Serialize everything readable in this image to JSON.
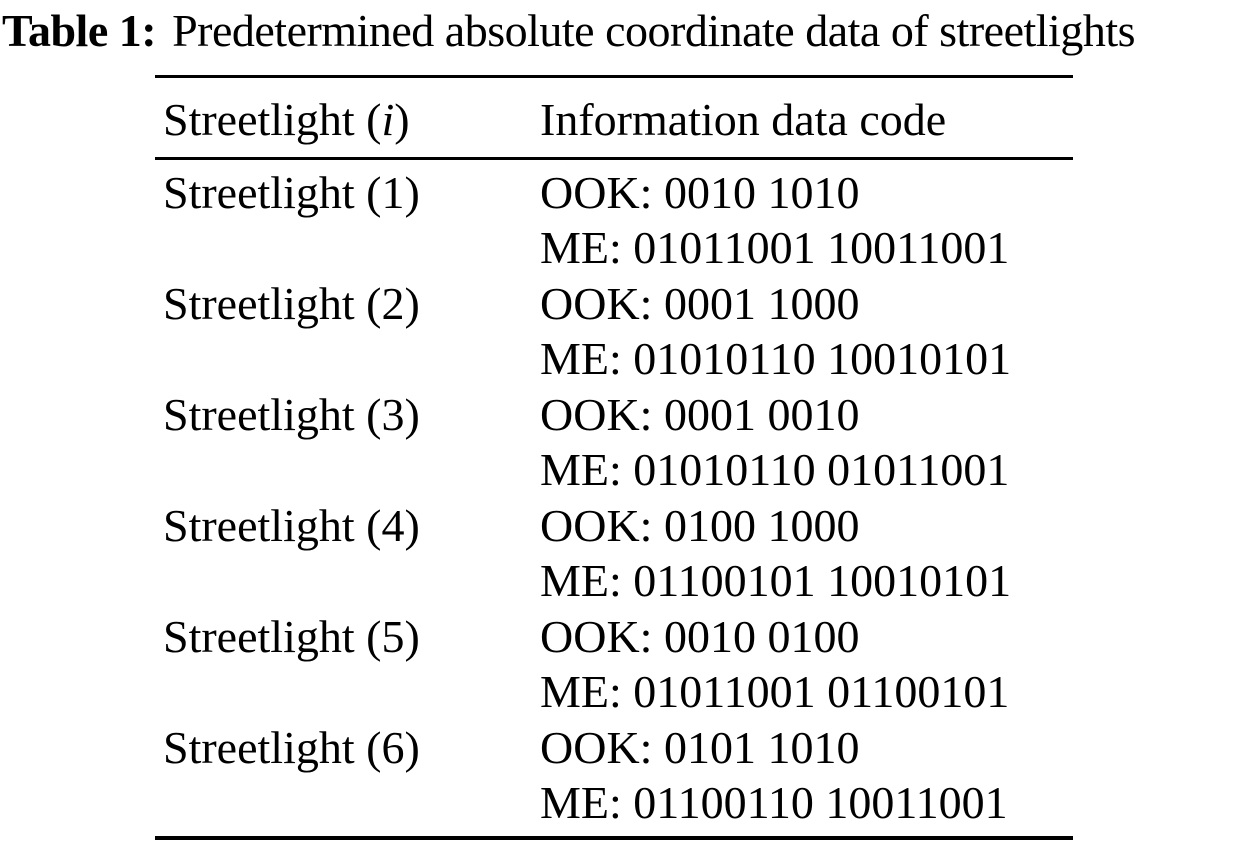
{
  "caption": {
    "label": "Table 1:",
    "text": "Predetermined absolute coordinate data of streetlights"
  },
  "table": {
    "header": {
      "col1_pre": "Streetlight (",
      "col1_var": "i",
      "col1_post": ")",
      "col2": "Information data code"
    },
    "rows": [
      {
        "streetlight": "Streetlight (1)",
        "ook": "OOK: 0010 1010",
        "me": "ME: 01011001 10011001"
      },
      {
        "streetlight": "Streetlight (2)",
        "ook": "OOK: 0001 1000",
        "me": "ME: 01010110 10010101"
      },
      {
        "streetlight": "Streetlight (3)",
        "ook": "OOK: 0001 0010",
        "me": "ME: 01010110 01011001"
      },
      {
        "streetlight": "Streetlight (4)",
        "ook": "OOK: 0100 1000",
        "me": "ME: 01100101 10010101"
      },
      {
        "streetlight": "Streetlight (5)",
        "ook": "OOK: 0010 0100",
        "me": "ME: 01011001 01100101"
      },
      {
        "streetlight": "Streetlight (6)",
        "ook": "OOK: 0101 1010",
        "me": "ME: 01100110 10011001"
      }
    ],
    "colors": {
      "text": "#000000",
      "background": "#ffffff",
      "rule": "#000000"
    }
  }
}
